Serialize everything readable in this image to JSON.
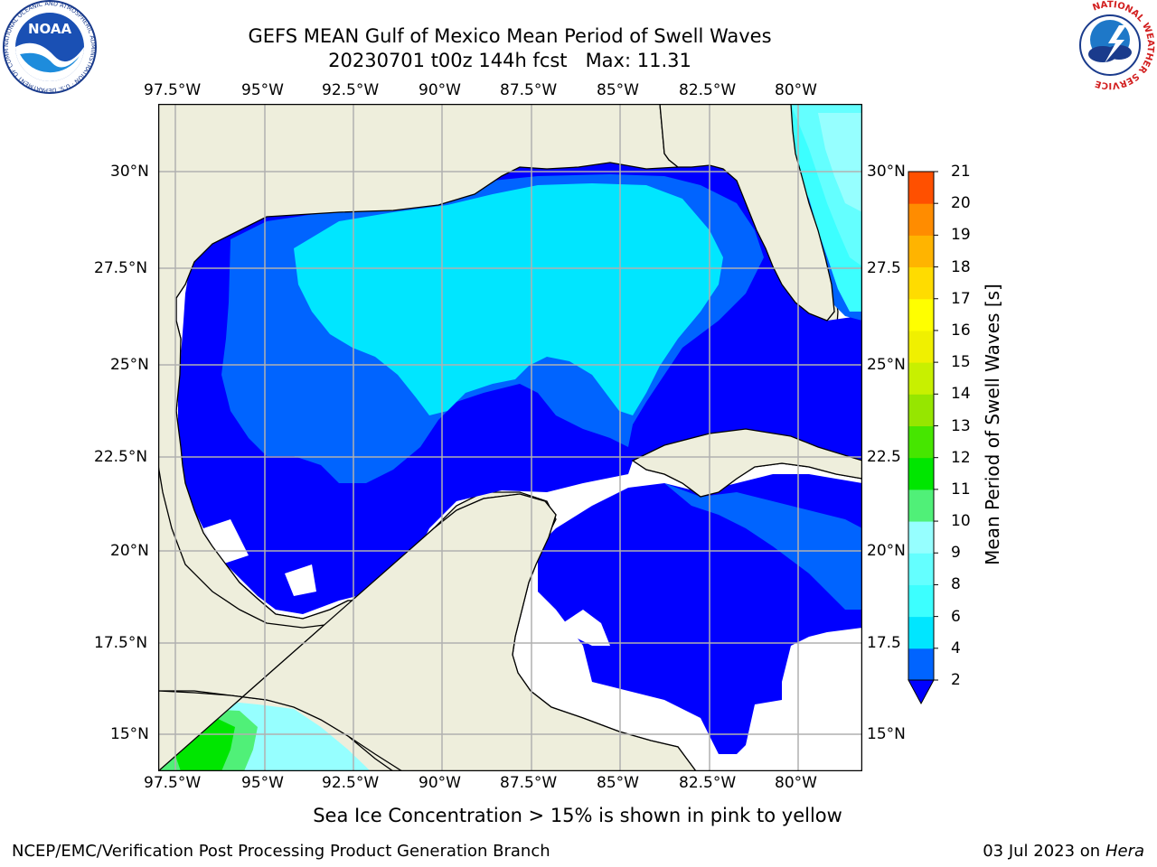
{
  "title": {
    "line1": "GEFS MEAN Gulf of Mexico Mean Period of Swell Waves",
    "line2": "20230701 t00z 144h fcst   Max: 11.31"
  },
  "map": {
    "lon_labels": [
      "97.5°W",
      "95°W",
      "92.5°W",
      "90°W",
      "87.5°W",
      "85°W",
      "82.5°W",
      "80°W"
    ],
    "lat_labels_left": [
      "30°N",
      "27.5°N",
      "25°N",
      "22.5°N",
      "20°N",
      "17.5°N",
      "15°N"
    ],
    "lat_labels_right": [
      "30°N",
      "27.5",
      "25°N",
      "22.5",
      "20°N",
      "17.5",
      "15°N"
    ],
    "extent": {
      "lon_min": -98.0,
      "lon_max": -78.2,
      "lat_min": 14.0,
      "lat_max": 31.8
    },
    "land_color": "#eeeedc",
    "grid_color": "#b0b0b0"
  },
  "colorbar": {
    "title": "Mean Period of Swell Waves [s]",
    "ticks": [
      "2",
      "4",
      "6",
      "8",
      "9",
      "10",
      "11",
      "12",
      "13",
      "14",
      "15",
      "16",
      "17",
      "18",
      "19",
      "20",
      "21"
    ],
    "colors": [
      "#0064ff",
      "#00e6ff",
      "#3cffff",
      "#64ffff",
      "#96ffff",
      "#50f078",
      "#00e600",
      "#46e600",
      "#96e600",
      "#c8f000",
      "#f0f000",
      "#ffff00",
      "#ffdc00",
      "#ffb400",
      "#ff8c00",
      "#ff5000",
      "#ff2800",
      "#ff0000"
    ],
    "extend_color": "#0000ff"
  },
  "note": "Sea Ice Concentration > 15% is shown in pink to yellow",
  "footer": {
    "left": "NCEP/EMC/Verification Post Processing Product Generation Branch",
    "right_date": "03 Jul 2023 on ",
    "right_host": "Hera"
  },
  "logos": {
    "noaa_text": "NOAA",
    "noaa_ring": "NATIONAL OCEANIC AND ATMOSPHERIC ADMINISTRATION · U.S. DEPARTMENT OF COMMERCE",
    "nws_ring": "NATIONAL WEATHER SERVICE"
  }
}
